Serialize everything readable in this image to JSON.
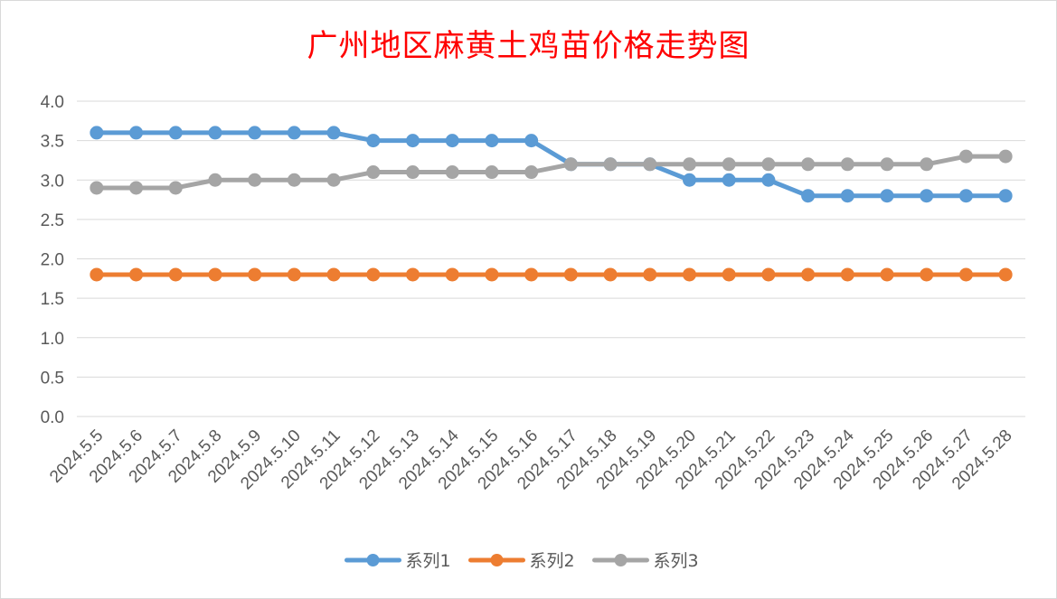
{
  "chart_data": {
    "type": "line",
    "title": "广州地区麻黄土鸡苗价格走势图",
    "xlabel": "",
    "ylabel": "",
    "ylim": [
      0,
      4
    ],
    "yticks": [
      "0.0",
      "0.5",
      "1.0",
      "1.5",
      "2.0",
      "2.5",
      "3.0",
      "3.5",
      "4.0"
    ],
    "grid": true,
    "legend_position": "bottom",
    "categories": [
      "2024.5.5",
      "2024.5.6",
      "2024.5.7",
      "2024.5.8",
      "2024.5.9",
      "2024.5.10",
      "2024.5.11",
      "2024.5.12",
      "2024.5.13",
      "2024.5.14",
      "2024.5.15",
      "2024.5.16",
      "2024.5.17",
      "2024.5.18",
      "2024.5.19",
      "2024.5.20",
      "2024.5.21",
      "2024.5.22",
      "2024.5.23",
      "2024.5.24",
      "2024.5.25",
      "2024.5.26",
      "2024.5.27",
      "2024.5.28"
    ],
    "series": [
      {
        "name": "系列1",
        "color": "#5b9bd5",
        "values": [
          3.6,
          3.6,
          3.6,
          3.6,
          3.6,
          3.6,
          3.6,
          3.5,
          3.5,
          3.5,
          3.5,
          3.5,
          3.2,
          3.2,
          3.2,
          3.0,
          3.0,
          3.0,
          2.8,
          2.8,
          2.8,
          2.8,
          2.8,
          2.8
        ]
      },
      {
        "name": "系列2",
        "color": "#ed7d31",
        "values": [
          1.8,
          1.8,
          1.8,
          1.8,
          1.8,
          1.8,
          1.8,
          1.8,
          1.8,
          1.8,
          1.8,
          1.8,
          1.8,
          1.8,
          1.8,
          1.8,
          1.8,
          1.8,
          1.8,
          1.8,
          1.8,
          1.8,
          1.8,
          1.8
        ]
      },
      {
        "name": "系列3",
        "color": "#a5a5a5",
        "values": [
          2.9,
          2.9,
          2.9,
          3.0,
          3.0,
          3.0,
          3.0,
          3.1,
          3.1,
          3.1,
          3.1,
          3.1,
          3.2,
          3.2,
          3.2,
          3.2,
          3.2,
          3.2,
          3.2,
          3.2,
          3.2,
          3.2,
          3.3,
          3.3
        ]
      }
    ]
  }
}
